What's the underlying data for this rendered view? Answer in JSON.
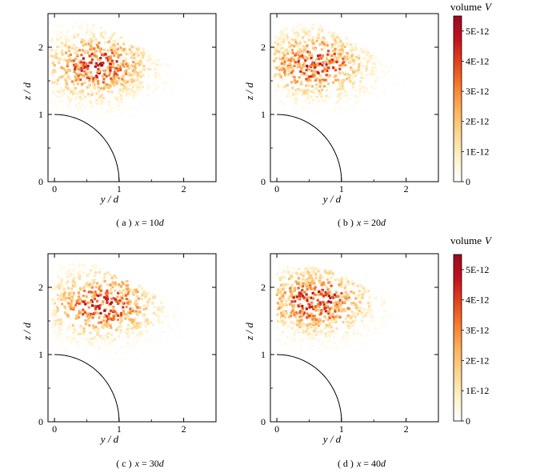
{
  "figure": {
    "colorbar": {
      "title": "volume",
      "title_var": "V",
      "range": [
        0,
        5.5e-12
      ],
      "ticks": [
        "0",
        "1E-12",
        "2E-12",
        "3E-12",
        "4E-12",
        "5E-12"
      ],
      "colors": [
        "#ffffff",
        "#fff1c8",
        "#fed690",
        "#fdb35c",
        "#f67f32",
        "#e4461e",
        "#c21320",
        "#9b0a20"
      ]
    },
    "axis_color": "#000000",
    "cylinder_radius": 1
  },
  "chart_data": [
    {
      "type": "scatter",
      "caption_label": "( a )",
      "caption_var": "x",
      "caption_eq": " = 10",
      "caption_unit": "d",
      "xlabel": "y / d",
      "ylabel": "z / d",
      "xlim": [
        -0.1,
        2.5
      ],
      "ylim": [
        0,
        2.5
      ],
      "xticks": [
        "0",
        "1",
        "2"
      ],
      "yticks": [
        "0",
        "1",
        "2"
      ],
      "core": [
        0.65,
        1.72
      ],
      "droplet_volume_distribution": {
        "y_range": [
          -0.05,
          1.95
        ],
        "z_range": [
          0.95,
          2.35
        ],
        "peak_V": 5.2e-12
      }
    },
    {
      "type": "scatter",
      "caption_label": "( b )",
      "caption_var": "x",
      "caption_eq": " = 20",
      "caption_unit": "d",
      "xlabel": "y / d",
      "ylabel": "z / d",
      "xlim": [
        -0.1,
        2.5
      ],
      "ylim": [
        0,
        2.5
      ],
      "xticks": [
        "0",
        "1",
        "2"
      ],
      "yticks": [
        "0",
        "1",
        "2"
      ],
      "core": [
        0.6,
        1.75
      ],
      "droplet_volume_distribution": {
        "y_range": [
          -0.05,
          2.0
        ],
        "z_range": [
          0.9,
          2.35
        ],
        "peak_V": 5e-12
      }
    },
    {
      "type": "scatter",
      "caption_label": "( c )",
      "caption_var": "x",
      "caption_eq": " = 30",
      "caption_unit": "d",
      "xlabel": "y / d",
      "ylabel": "z / d",
      "xlim": [
        -0.1,
        2.5
      ],
      "ylim": [
        0,
        2.5
      ],
      "xticks": [
        "0",
        "1",
        "2"
      ],
      "yticks": [
        "0",
        "1",
        "2"
      ],
      "core": [
        0.75,
        1.75
      ],
      "droplet_volume_distribution": {
        "y_range": [
          -0.05,
          2.05
        ],
        "z_range": [
          0.85,
          2.35
        ],
        "peak_V": 5.3e-12
      }
    },
    {
      "type": "scatter",
      "caption_label": "( d )",
      "caption_var": "x",
      "caption_eq": " = 40",
      "caption_unit": "d",
      "xlabel": "y / d",
      "ylabel": "z / d",
      "xlim": [
        -0.1,
        2.5
      ],
      "ylim": [
        0,
        2.5
      ],
      "xticks": [
        "0",
        "1",
        "2"
      ],
      "yticks": [
        "0",
        "1",
        "2"
      ],
      "core": [
        0.6,
        1.8
      ],
      "droplet_volume_distribution": {
        "y_range": [
          0.0,
          2.0
        ],
        "z_range": [
          0.85,
          2.3
        ],
        "peak_V": 5.4e-12
      }
    }
  ]
}
